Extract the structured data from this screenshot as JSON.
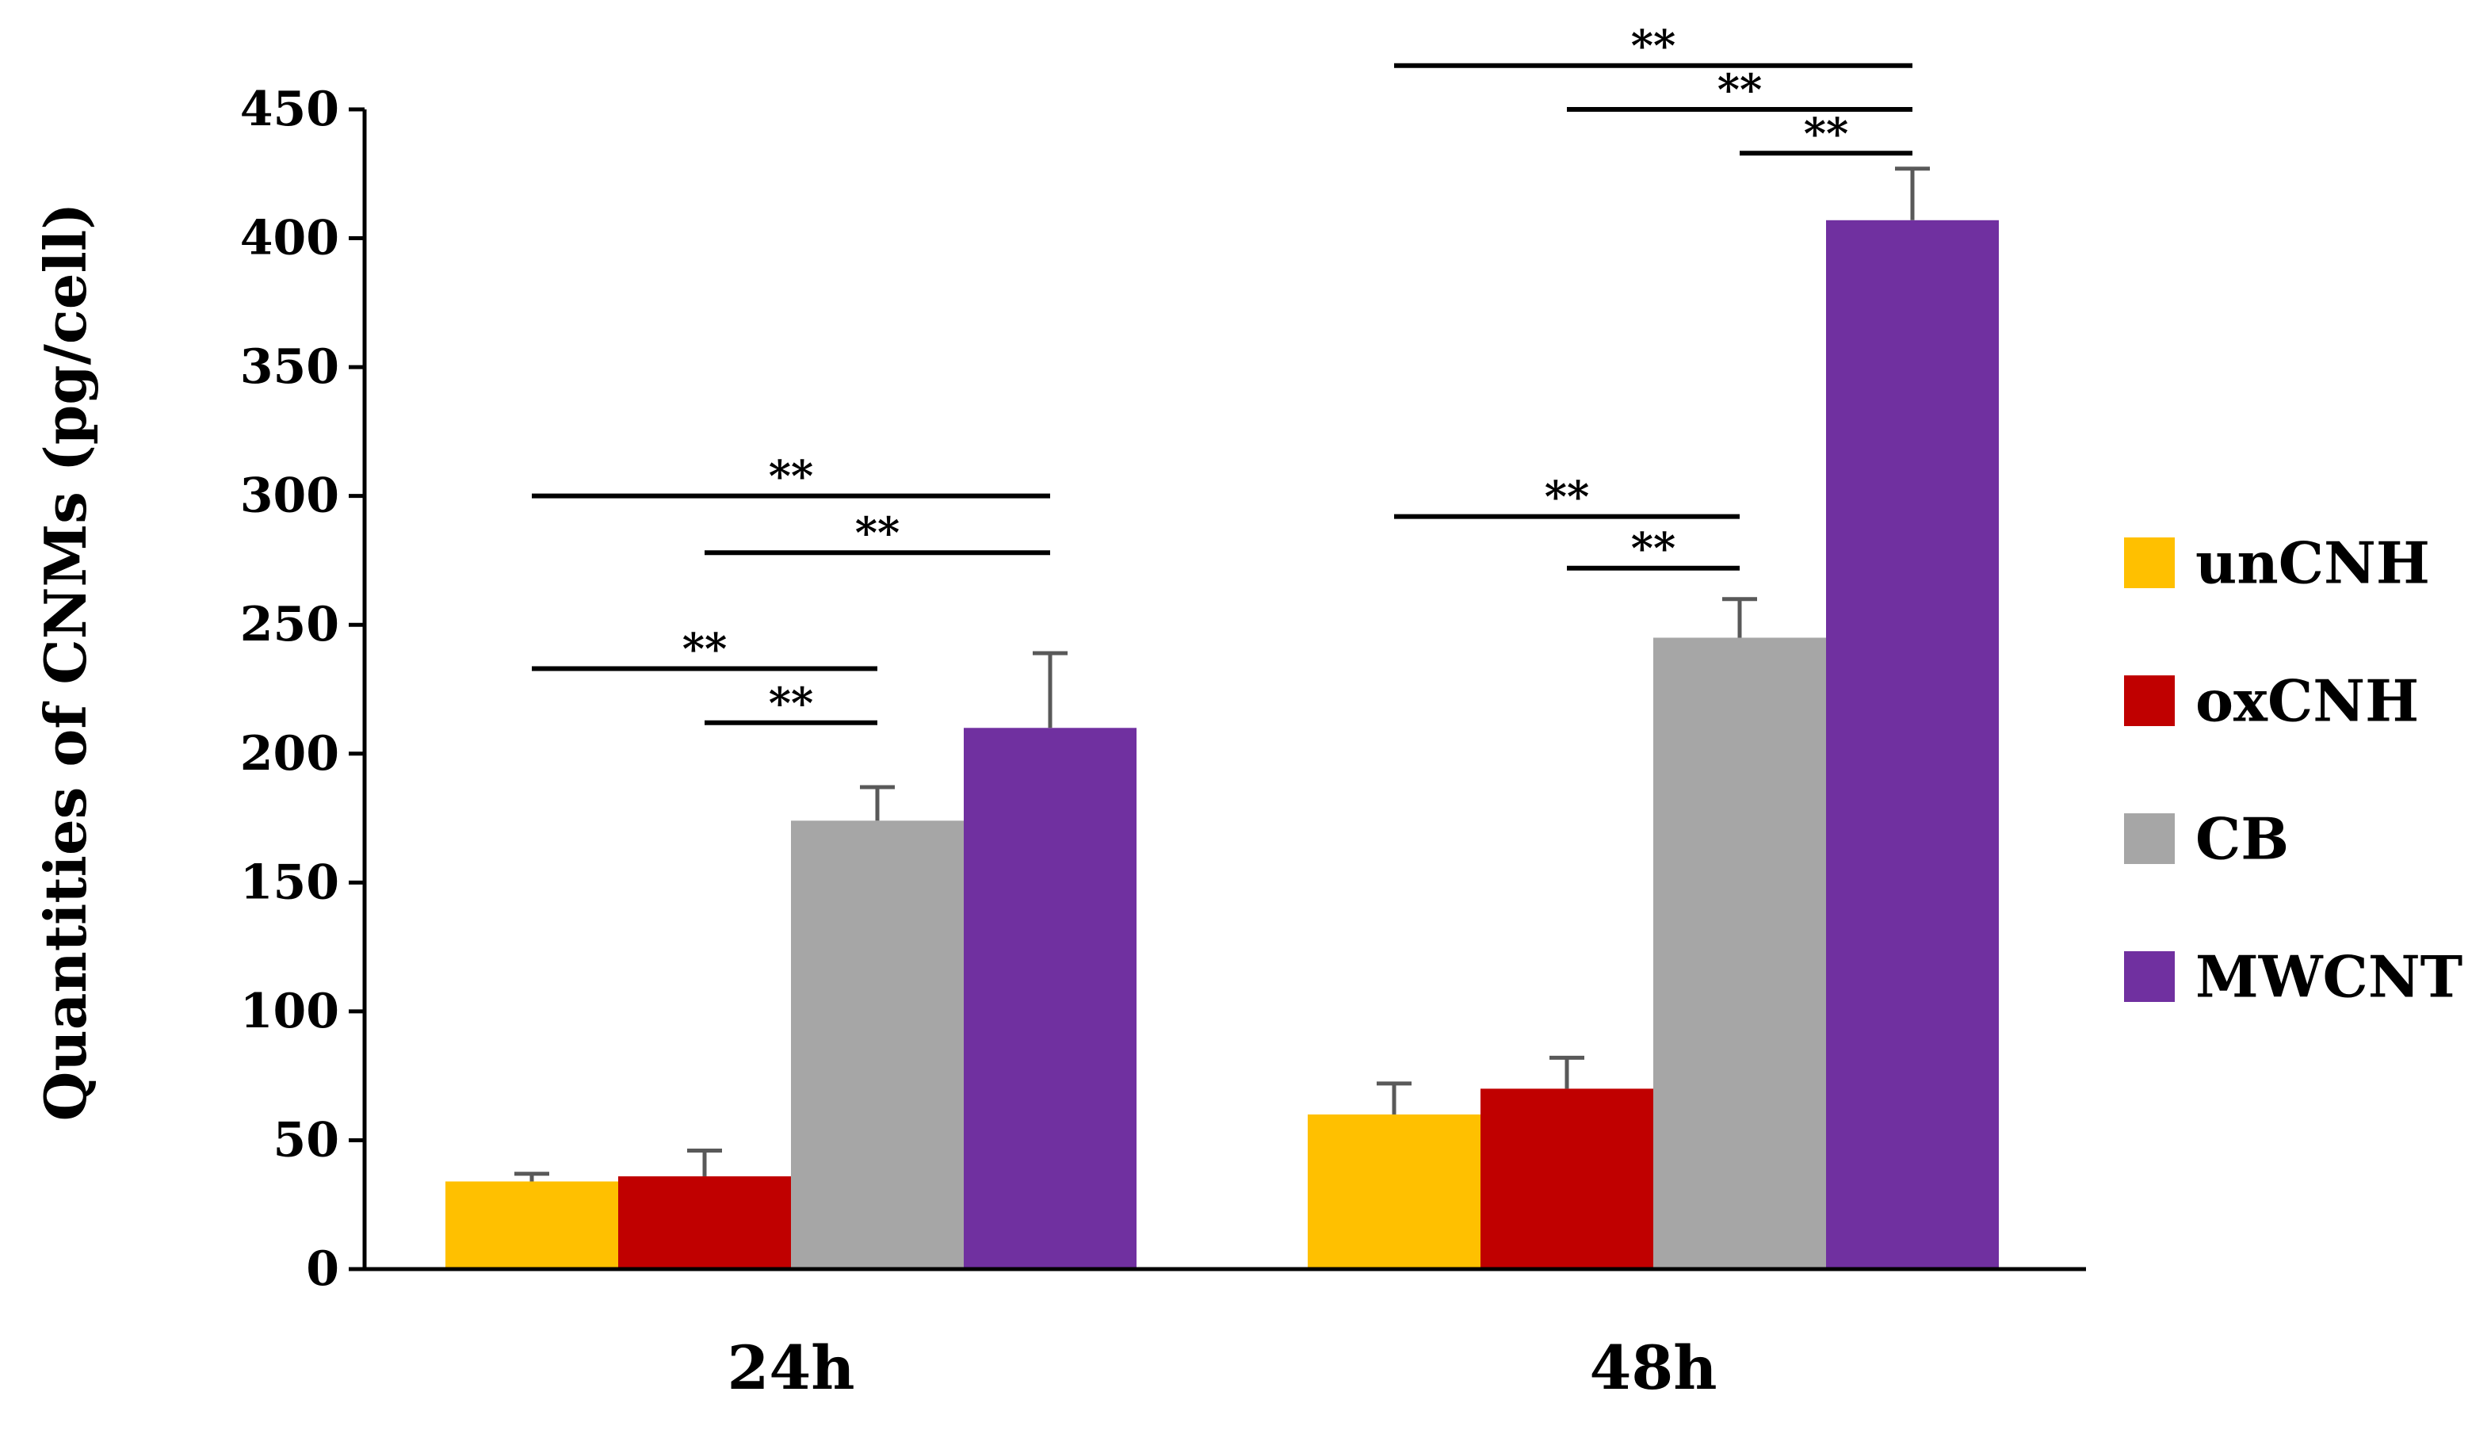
{
  "chart_data": {
    "type": "bar",
    "title": "",
    "xlabel": "",
    "ylabel": "Quantities of CNMs (pg/cell)",
    "ylim": [
      0,
      450
    ],
    "yticks": [
      0,
      50,
      100,
      150,
      200,
      250,
      300,
      350,
      400,
      450
    ],
    "categories": [
      "24h",
      "48h"
    ],
    "grid": false,
    "legend_position": "right",
    "series": [
      {
        "name": "unCNH",
        "color": "#FFC000",
        "values": [
          34,
          60
        ],
        "errors": [
          3,
          12
        ]
      },
      {
        "name": "oxCNH",
        "color": "#C00000",
        "values": [
          36,
          70
        ],
        "errors": [
          10,
          12
        ]
      },
      {
        "name": "CB",
        "color": "#A6A6A6",
        "values": [
          174,
          245
        ],
        "errors": [
          13,
          15
        ]
      },
      {
        "name": "MWCNT",
        "color": "#7030A0",
        "values": [
          210,
          407
        ],
        "errors": [
          29,
          20
        ]
      }
    ],
    "significance": [
      {
        "category": 0,
        "from": 0,
        "to": 3,
        "level": 300,
        "label": "**"
      },
      {
        "category": 0,
        "from": 1,
        "to": 3,
        "level": 278,
        "label": "**"
      },
      {
        "category": 0,
        "from": 0,
        "to": 2,
        "level": 233,
        "label": "**"
      },
      {
        "category": 0,
        "from": 1,
        "to": 2,
        "level": 212,
        "label": "**"
      },
      {
        "category": 1,
        "from": 0,
        "to": 3,
        "level": 467,
        "label": "**"
      },
      {
        "category": 1,
        "from": 1,
        "to": 3,
        "level": 450,
        "label": "**"
      },
      {
        "category": 1,
        "from": 2,
        "to": 3,
        "level": 433,
        "label": "**"
      },
      {
        "category": 1,
        "from": 0,
        "to": 2,
        "level": 292,
        "label": "**"
      },
      {
        "category": 1,
        "from": 1,
        "to": 2,
        "level": 272,
        "label": "**"
      }
    ]
  }
}
